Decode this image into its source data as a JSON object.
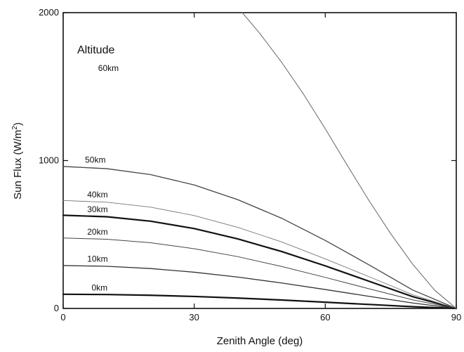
{
  "chart_data": {
    "type": "line",
    "xlabel": "Zenith Angle (deg)",
    "ylabel_main": "Sun Flux (W/m",
    "ylabel_sup": "2",
    "ylabel_close": ")",
    "xlim": [
      0,
      90
    ],
    "ylim": [
      0,
      2000
    ],
    "x_ticks": [
      0,
      30,
      60,
      90
    ],
    "x_tick_labels": [
      "0",
      "30",
      "60",
      "90"
    ],
    "y_ticks": [
      0,
      1000,
      2000
    ],
    "y_tick_labels": [
      "0",
      "1000",
      "2000"
    ],
    "legend_title": "Altitude",
    "grid": false,
    "series": [
      {
        "name": "0km",
        "x": [
          0,
          10,
          20,
          30,
          40,
          50,
          60,
          70,
          80,
          90
        ],
        "y": [
          96,
          94,
          89,
          81,
          70,
          57,
          42,
          27,
          12,
          0
        ],
        "color": "#111111",
        "width": 2.2
      },
      {
        "name": "10km",
        "x": [
          0,
          10,
          20,
          30,
          40,
          50,
          60,
          70,
          80,
          90
        ],
        "y": [
          290,
          285,
          270,
          245,
          212,
          172,
          128,
          82,
          37,
          0
        ],
        "color": "#333333",
        "width": 1.3
      },
      {
        "name": "20km",
        "x": [
          0,
          10,
          20,
          30,
          40,
          50,
          60,
          70,
          80,
          90
        ],
        "y": [
          476,
          468,
          444,
          404,
          350,
          284,
          210,
          133,
          58,
          0
        ],
        "color": "#444444",
        "width": 1.0
      },
      {
        "name": "30km",
        "x": [
          0,
          10,
          20,
          30,
          40,
          50,
          60,
          70,
          80,
          90
        ],
        "y": [
          630,
          620,
          590,
          540,
          470,
          385,
          288,
          184,
          80,
          0
        ],
        "color": "#111111",
        "width": 2.2
      },
      {
        "name": "40km",
        "x": [
          0,
          10,
          20,
          30,
          40,
          50,
          60,
          70,
          80,
          90
        ],
        "y": [
          730,
          718,
          685,
          628,
          548,
          450,
          335,
          215,
          93,
          0
        ],
        "color": "#777777",
        "width": 0.9
      },
      {
        "name": "50km",
        "x": [
          0,
          10,
          20,
          30,
          40,
          50,
          60,
          70,
          80,
          90
        ],
        "y": [
          960,
          945,
          905,
          835,
          735,
          610,
          460,
          295,
          125,
          0
        ],
        "color": "#444444",
        "width": 1.3
      },
      {
        "name": "60km",
        "x": [
          41,
          45,
          50,
          55,
          60,
          65,
          70,
          75,
          80,
          85,
          90
        ],
        "y": [
          2000,
          1860,
          1665,
          1450,
          1215,
          970,
          730,
          505,
          300,
          125,
          0
        ],
        "color": "#666666",
        "width": 1.0
      }
    ],
    "series_labels": [
      {
        "text": "0km",
        "x": 6.5,
        "y": 120
      },
      {
        "text": "10km",
        "x": 5.5,
        "y": 315
      },
      {
        "text": "20km",
        "x": 5.5,
        "y": 500
      },
      {
        "text": "30km",
        "x": 5.5,
        "y": 650
      },
      {
        "text": "40km",
        "x": 5.5,
        "y": 750
      },
      {
        "text": "50km",
        "x": 5.0,
        "y": 985
      },
      {
        "text": "60km",
        "x": 8.0,
        "y": 1605
      }
    ]
  }
}
